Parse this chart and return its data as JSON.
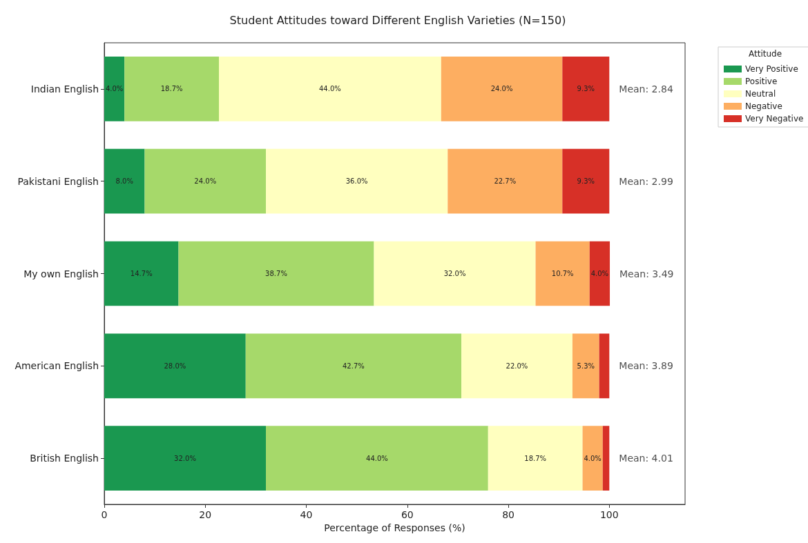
{
  "chart_data": {
    "type": "bar",
    "orientation": "horizontal",
    "stacked": true,
    "title": "Student Attitudes toward Different English Varieties (N=150)",
    "xlabel": "Percentage of Responses (%)",
    "legend_title": "Attitude",
    "legend": "top right",
    "categories": [
      "Indian English",
      "Pakistani English",
      "My own English",
      "American English",
      "British English"
    ],
    "series": [
      {
        "name": "Very Positive",
        "color": "#1a9850",
        "values": [
          4.0,
          8.0,
          14.7,
          28.0,
          32.0
        ],
        "value_labels": [
          "4.0%",
          "8.0%",
          "14.7%",
          "28.0%",
          "32.0%"
        ]
      },
      {
        "name": "Positive",
        "color": "#a6d96a",
        "values": [
          18.7,
          24.0,
          38.7,
          42.7,
          44.0
        ],
        "value_labels": [
          "18.7%",
          "24.0%",
          "38.7%",
          "42.7%",
          "44.0%"
        ]
      },
      {
        "name": "Neutral",
        "color": "#ffffbf",
        "values": [
          44.0,
          36.0,
          32.0,
          22.0,
          18.7
        ],
        "value_labels": [
          "44.0%",
          "36.0%",
          "32.0%",
          "22.0%",
          "18.7%"
        ]
      },
      {
        "name": "Negative",
        "color": "#fdae61",
        "values": [
          24.0,
          22.7,
          10.7,
          5.3,
          4.0
        ],
        "value_labels": [
          "24.0%",
          "22.7%",
          "10.7%",
          "5.3%",
          "4.0%"
        ]
      },
      {
        "name": "Very Negative",
        "color": "#d73027",
        "values": [
          9.3,
          9.3,
          4.0,
          2.0,
          1.3
        ],
        "value_labels": [
          "9.3%",
          "9.3%",
          "4.0%",
          null,
          null
        ]
      }
    ],
    "xlim": [
      0,
      115
    ],
    "xticks": [
      0,
      20,
      40,
      60,
      80,
      100
    ],
    "grid": false,
    "annotations": [
      "Mean: 2.84",
      "Mean: 2.99",
      "Mean: 3.49",
      "Mean: 3.89",
      "Mean: 4.01"
    ]
  }
}
